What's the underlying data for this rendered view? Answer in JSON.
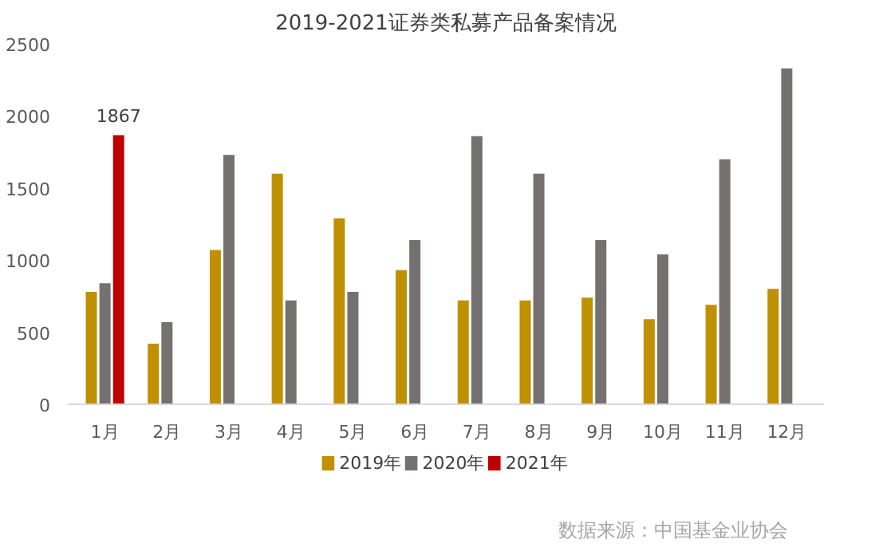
{
  "chart_data": {
    "type": "bar",
    "title": "2019-2021证券类私募产品备案情况",
    "categories": [
      "1月",
      "2月",
      "3月",
      "4月",
      "5月",
      "6月",
      "7月",
      "8月",
      "9月",
      "10月",
      "11月",
      "12月"
    ],
    "series": [
      {
        "name": "2019年",
        "color": "#bf9000",
        "values": [
          780,
          420,
          1070,
          1600,
          1290,
          930,
          720,
          720,
          740,
          590,
          690,
          800
        ]
      },
      {
        "name": "2020年",
        "color": "#767171",
        "values": [
          840,
          570,
          1730,
          720,
          780,
          1140,
          1860,
          1600,
          1140,
          1040,
          1700,
          2330
        ]
      },
      {
        "name": "2021年",
        "color": "#c00000",
        "values": [
          1867,
          null,
          null,
          null,
          null,
          null,
          null,
          null,
          null,
          null,
          null,
          null
        ],
        "value_labels": [
          "1867",
          null,
          null,
          null,
          null,
          null,
          null,
          null,
          null,
          null,
          null,
          null
        ]
      }
    ],
    "ylim": [
      0,
      2500
    ],
    "yticks": [
      0,
      500,
      1000,
      1500,
      2000,
      2500
    ],
    "grid": false,
    "legend": "bottom",
    "annotations": [
      "数据来源：中国基金业协会"
    ]
  }
}
